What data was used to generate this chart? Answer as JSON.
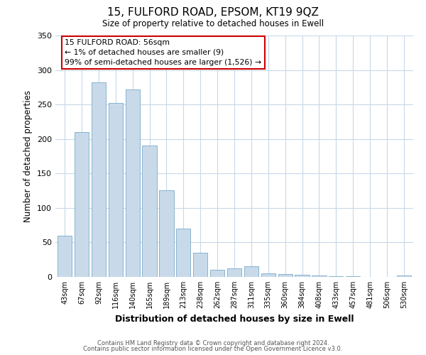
{
  "title_line1": "15, FULFORD ROAD, EPSOM, KT19 9QZ",
  "title_line2": "Size of property relative to detached houses in Ewell",
  "xlabel": "Distribution of detached houses by size in Ewell",
  "ylabel": "Number of detached properties",
  "bar_color": "#c8daea",
  "bar_edge_color": "#7aaac8",
  "categories": [
    "43sqm",
    "67sqm",
    "92sqm",
    "116sqm",
    "140sqm",
    "165sqm",
    "189sqm",
    "213sqm",
    "238sqm",
    "262sqm",
    "287sqm",
    "311sqm",
    "335sqm",
    "360sqm",
    "384sqm",
    "408sqm",
    "433sqm",
    "457sqm",
    "481sqm",
    "506sqm",
    "530sqm"
  ],
  "values": [
    60,
    210,
    282,
    252,
    272,
    190,
    126,
    70,
    35,
    10,
    12,
    15,
    5,
    4,
    3,
    2,
    1,
    1,
    0,
    0,
    2
  ],
  "ylim": [
    0,
    350
  ],
  "yticks": [
    0,
    50,
    100,
    150,
    200,
    250,
    300,
    350
  ],
  "annotation_text": "15 FULFORD ROAD: 56sqm\n← 1% of detached houses are smaller (9)\n99% of semi-detached houses are larger (1,526) →",
  "annotation_box_color": "#ffffff",
  "annotation_box_edge": "#cc0000",
  "grid_color": "#c8d8e8",
  "footer_line1": "Contains HM Land Registry data © Crown copyright and database right 2024.",
  "footer_line2": "Contains public sector information licensed under the Open Government Licence v3.0."
}
